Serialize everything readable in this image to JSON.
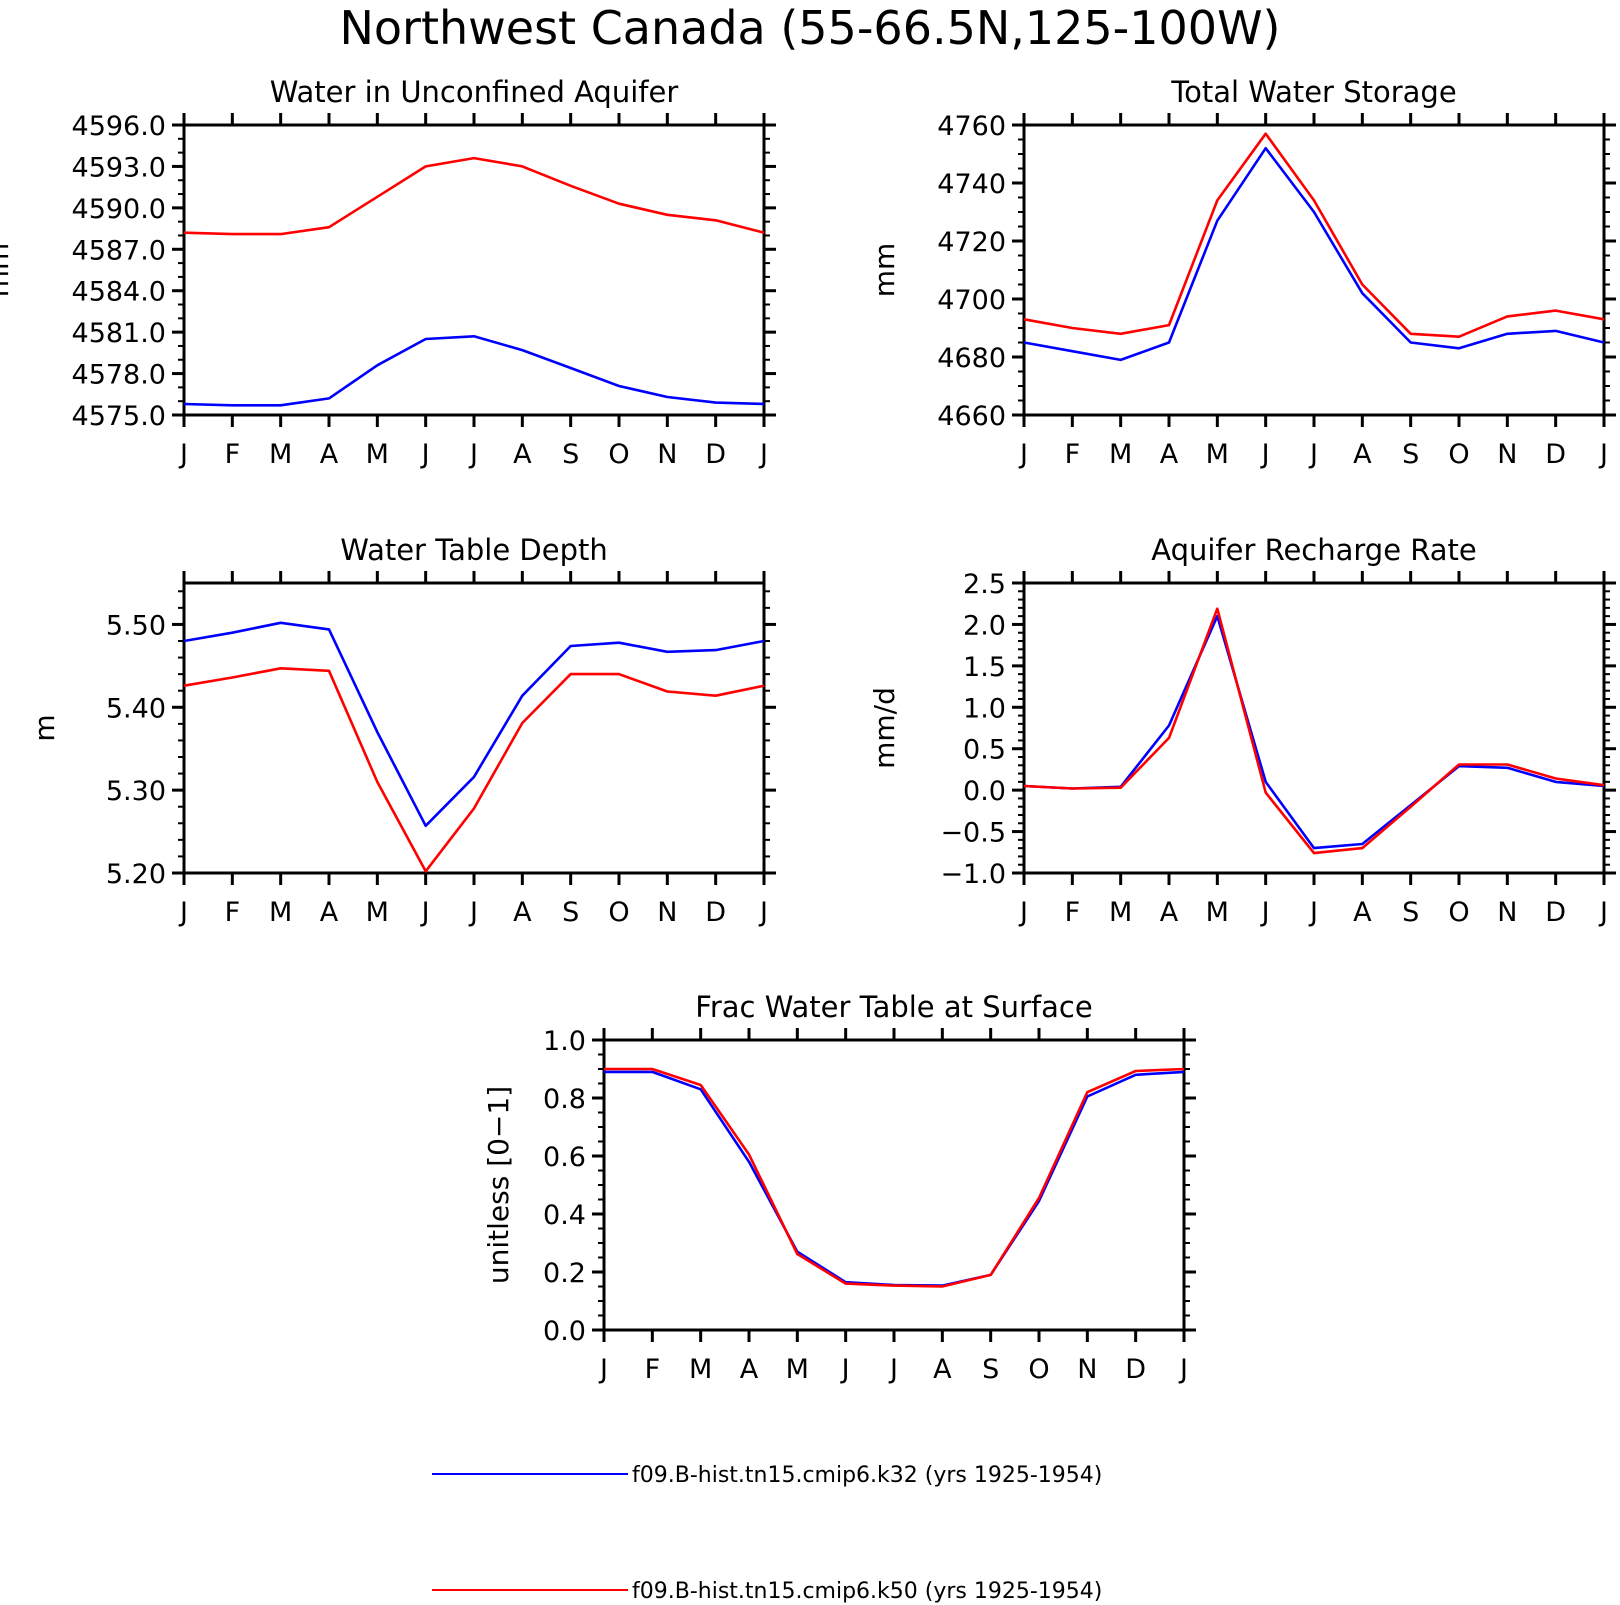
{
  "figure": {
    "title": "Northwest Canada (55-66.5N,125-100W)"
  },
  "colors": {
    "series_1": "#0000ff",
    "series_2": "#ff0000",
    "axes": "#000000"
  },
  "legend": [
    {
      "label": "f09.B-hist.tn15.cmip6.k32 (yrs 1925-1954)",
      "color": "#0000ff"
    },
    {
      "label": "f09.B-hist.tn15.cmip6.k50 (yrs 1925-1954)",
      "color": "#ff0000"
    }
  ],
  "chart_data": [
    {
      "type": "line",
      "title": "Water in Unconfined Aquifer",
      "ylabel": "mm",
      "categories": [
        "J",
        "F",
        "M",
        "A",
        "M",
        "J",
        "J",
        "A",
        "S",
        "O",
        "N",
        "D",
        "J"
      ],
      "ylim": [
        4575.0,
        4596.0
      ],
      "yticks": [
        "4575.0",
        "4578.0",
        "4581.0",
        "4584.0",
        "4587.0",
        "4590.0",
        "4593.0",
        "4596.0"
      ],
      "series": [
        {
          "name": "f09.B-hist.tn15.cmip6.k32 (yrs 1925-1954)",
          "color": "#0000ff",
          "values": [
            4575.8,
            4575.7,
            4575.7,
            4576.2,
            4578.6,
            4580.5,
            4580.7,
            4579.7,
            4578.4,
            4577.1,
            4576.3,
            4575.9,
            4575.8
          ]
        },
        {
          "name": "f09.B-hist.tn15.cmip6.k50 (yrs 1925-1954)",
          "color": "#ff0000",
          "values": [
            4588.2,
            4588.1,
            4588.1,
            4588.6,
            4590.8,
            4593.0,
            4593.6,
            4593.0,
            4591.6,
            4590.3,
            4589.5,
            4589.1,
            4588.2
          ]
        }
      ]
    },
    {
      "type": "line",
      "title": "Total Water Storage",
      "ylabel": "mm",
      "categories": [
        "J",
        "F",
        "M",
        "A",
        "M",
        "J",
        "J",
        "A",
        "S",
        "O",
        "N",
        "D",
        "J"
      ],
      "ylim": [
        4660,
        4760
      ],
      "yticks": [
        "4660",
        "4680",
        "4700",
        "4720",
        "4740",
        "4760"
      ],
      "series": [
        {
          "name": "f09.B-hist.tn15.cmip6.k32 (yrs 1925-1954)",
          "color": "#0000ff",
          "values": [
            4685,
            4682,
            4679,
            4685,
            4727,
            4752,
            4730,
            4702,
            4685,
            4683,
            4688,
            4689,
            4685
          ]
        },
        {
          "name": "f09.B-hist.tn15.cmip6.k50 (yrs 1925-1954)",
          "color": "#ff0000",
          "values": [
            4693,
            4690,
            4688,
            4691,
            4734,
            4757,
            4734,
            4705,
            4688,
            4687,
            4694,
            4696,
            4693
          ]
        }
      ]
    },
    {
      "type": "line",
      "title": "Water Table Depth",
      "ylabel": "m",
      "categories": [
        "J",
        "F",
        "M",
        "A",
        "M",
        "J",
        "J",
        "A",
        "S",
        "O",
        "N",
        "D",
        "J"
      ],
      "ylim": [
        5.2,
        5.55
      ],
      "yticks": [
        "5.20",
        "5.30",
        "5.40",
        "5.50"
      ],
      "series": [
        {
          "name": "f09.B-hist.tn15.cmip6.k32 (yrs 1925-1954)",
          "color": "#0000ff",
          "values": [
            5.48,
            5.49,
            5.502,
            5.494,
            5.37,
            5.257,
            5.316,
            5.414,
            5.474,
            5.478,
            5.467,
            5.469,
            5.48
          ]
        },
        {
          "name": "f09.B-hist.tn15.cmip6.k50 (yrs 1925-1954)",
          "color": "#ff0000",
          "values": [
            5.426,
            5.436,
            5.447,
            5.444,
            5.31,
            5.202,
            5.278,
            5.381,
            5.44,
            5.44,
            5.419,
            5.414,
            5.426
          ]
        }
      ]
    },
    {
      "type": "line",
      "title": "Aquifer Recharge Rate",
      "ylabel": "mm/d",
      "categories": [
        "J",
        "F",
        "M",
        "A",
        "M",
        "J",
        "J",
        "A",
        "S",
        "O",
        "N",
        "D",
        "J"
      ],
      "ylim": [
        -1.0,
        2.5
      ],
      "yticks": [
        "-1.0",
        "-0.5",
        "0.0",
        "0.5",
        "1.0",
        "1.5",
        "2.0",
        "2.5"
      ],
      "series": [
        {
          "name": "f09.B-hist.tn15.cmip6.k32 (yrs 1925-1954)",
          "color": "#0000ff",
          "values": [
            0.05,
            0.02,
            0.04,
            0.78,
            2.1,
            0.1,
            -0.7,
            -0.65,
            -0.18,
            0.29,
            0.27,
            0.1,
            0.05
          ]
        },
        {
          "name": "f09.B-hist.tn15.cmip6.k50 (yrs 1925-1954)",
          "color": "#ff0000",
          "values": [
            0.05,
            0.02,
            0.03,
            0.63,
            2.19,
            -0.03,
            -0.76,
            -0.7,
            -0.2,
            0.31,
            0.31,
            0.14,
            0.06
          ]
        }
      ]
    },
    {
      "type": "line",
      "title": "Frac Water Table at Surface",
      "ylabel": "unitless [0-1]",
      "categories": [
        "J",
        "F",
        "M",
        "A",
        "M",
        "J",
        "J",
        "A",
        "S",
        "O",
        "N",
        "D",
        "J"
      ],
      "ylim": [
        0.0,
        1.0
      ],
      "yticks": [
        "0.0",
        "0.2",
        "0.4",
        "0.6",
        "0.8",
        "1.0"
      ],
      "series": [
        {
          "name": "f09.B-hist.tn15.cmip6.k32 (yrs 1925-1954)",
          "color": "#0000ff",
          "values": [
            0.89,
            0.89,
            0.83,
            0.58,
            0.27,
            0.165,
            0.155,
            0.153,
            0.19,
            0.445,
            0.805,
            0.88,
            0.89
          ]
        },
        {
          "name": "f09.B-hist.tn15.cmip6.k50 (yrs 1925-1954)",
          "color": "#ff0000",
          "values": [
            0.9,
            0.9,
            0.845,
            0.605,
            0.262,
            0.16,
            0.153,
            0.15,
            0.19,
            0.455,
            0.82,
            0.893,
            0.9
          ]
        }
      ]
    }
  ]
}
